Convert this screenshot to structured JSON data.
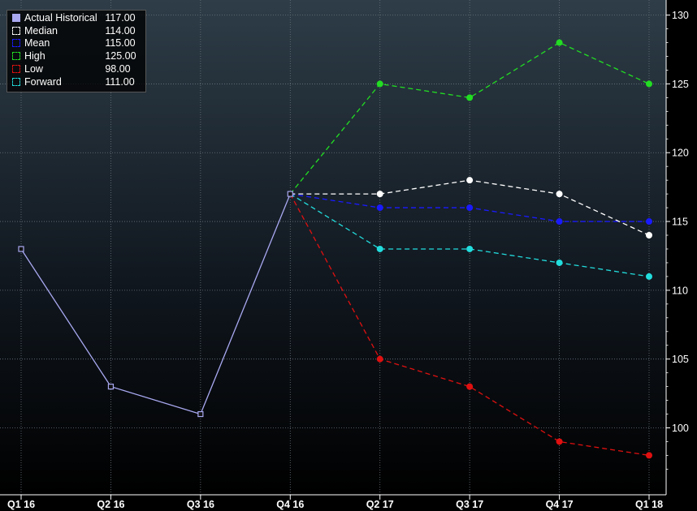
{
  "chart_data": {
    "type": "line",
    "categories": [
      "Q1 16",
      "Q2 16",
      "Q3 16",
      "Q4 16",
      "Q2 17",
      "Q3 17",
      "Q4 17",
      "Q1 18"
    ],
    "ylim": [
      96,
      130.5
    ],
    "y_ticks": [
      100,
      105,
      110,
      115,
      120,
      125,
      130
    ],
    "y_axis_side": "right",
    "grid": true,
    "legend_position": "top-left",
    "series": [
      {
        "name": "Actual Historical",
        "legend_value": "117.00",
        "color": "#a8a8f0",
        "style": "solid",
        "marker": "hollow-square",
        "points": [
          {
            "x": "Q1 16",
            "y": 113
          },
          {
            "x": "Q2 16",
            "y": 103
          },
          {
            "x": "Q3 16",
            "y": 101
          },
          {
            "x": "Q4 16",
            "y": 117
          }
        ]
      },
      {
        "name": "Median",
        "legend_value": "114.00",
        "color": "#ffffff",
        "style": "dashed",
        "marker": "circle",
        "points": [
          {
            "x": "Q4 16",
            "y": 117
          },
          {
            "x": "Q2 17",
            "y": 117
          },
          {
            "x": "Q3 17",
            "y": 118
          },
          {
            "x": "Q4 17",
            "y": 117
          },
          {
            "x": "Q1 18",
            "y": 114
          }
        ]
      },
      {
        "name": "Mean",
        "legend_value": "115.00",
        "color": "#1a1aff",
        "style": "dashed",
        "marker": "circle",
        "points": [
          {
            "x": "Q4 16",
            "y": 117
          },
          {
            "x": "Q2 17",
            "y": 116
          },
          {
            "x": "Q3 17",
            "y": 116
          },
          {
            "x": "Q4 17",
            "y": 115
          },
          {
            "x": "Q1 18",
            "y": 115
          }
        ]
      },
      {
        "name": "High",
        "legend_value": "125.00",
        "color": "#22dd22",
        "style": "dashed",
        "marker": "circle",
        "points": [
          {
            "x": "Q4 16",
            "y": 117
          },
          {
            "x": "Q2 17",
            "y": 125
          },
          {
            "x": "Q3 17",
            "y": 124
          },
          {
            "x": "Q4 17",
            "y": 128
          },
          {
            "x": "Q1 18",
            "y": 125
          }
        ]
      },
      {
        "name": "Low",
        "legend_value": "98.00",
        "color": "#e01010",
        "style": "dashed",
        "marker": "circle",
        "points": [
          {
            "x": "Q4 16",
            "y": 117
          },
          {
            "x": "Q2 17",
            "y": 105
          },
          {
            "x": "Q3 17",
            "y": 103
          },
          {
            "x": "Q4 17",
            "y": 99
          },
          {
            "x": "Q1 18",
            "y": 98
          }
        ]
      },
      {
        "name": "Forward",
        "legend_value": "111.00",
        "color": "#22dddd",
        "style": "dashed",
        "marker": "circle",
        "points": [
          {
            "x": "Q4 16",
            "y": 117
          },
          {
            "x": "Q2 17",
            "y": 113
          },
          {
            "x": "Q3 17",
            "y": 113
          },
          {
            "x": "Q4 17",
            "y": 112
          },
          {
            "x": "Q1 18",
            "y": 111
          }
        ]
      }
    ]
  }
}
